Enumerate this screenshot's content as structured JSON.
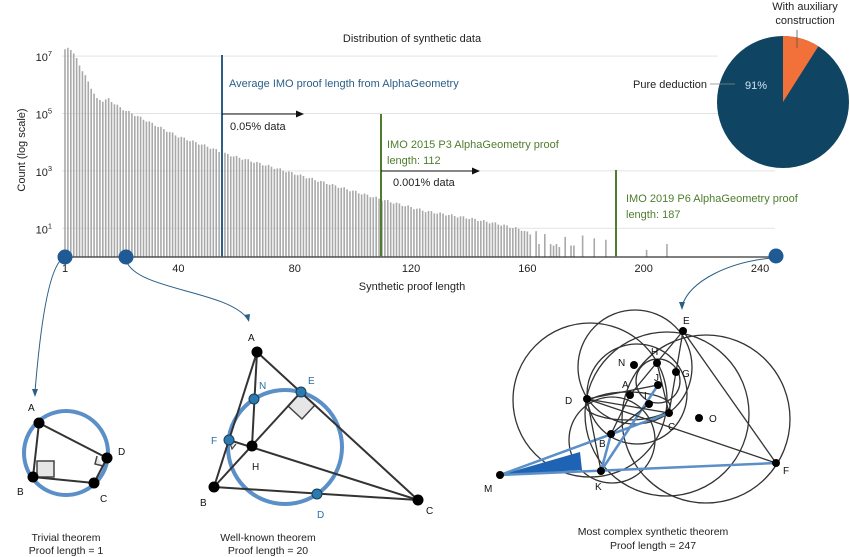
{
  "chart_data": [
    {
      "type": "bar",
      "title": "Distribution of synthetic data",
      "xlabel": "Synthetic proof length",
      "ylabel": "Count (log scale)",
      "y_scale": "log",
      "xlim": [
        1,
        247
      ],
      "ylim_log10": [
        0,
        7.4
      ],
      "x_ticks": [
        "1",
        "40",
        "80",
        "120",
        "160",
        "200",
        "240"
      ],
      "x_tick_values": [
        1,
        40,
        80,
        120,
        160,
        200,
        240
      ],
      "y_ticks": [
        {
          "base": "10",
          "exp": "7",
          "log10": 7
        },
        {
          "base": "10",
          "exp": "5",
          "log10": 5
        },
        {
          "base": "10",
          "exp": "3",
          "log10": 3
        },
        {
          "base": "10",
          "exp": "1",
          "log10": 1
        }
      ],
      "grid": true,
      "bar_color": "#a9a9a9",
      "log10_count_profile": [
        [
          1,
          7.2
        ],
        [
          2,
          7.3
        ],
        [
          3,
          7.25
        ],
        [
          5,
          6.9
        ],
        [
          8,
          6.3
        ],
        [
          10,
          5.9
        ],
        [
          12,
          5.5
        ],
        [
          14,
          5.45
        ],
        [
          16,
          5.5
        ],
        [
          20,
          5.2
        ],
        [
          30,
          4.7
        ],
        [
          40,
          4.2
        ],
        [
          50,
          3.85
        ],
        [
          56,
          3.6
        ],
        [
          70,
          3.2
        ],
        [
          90,
          2.6
        ],
        [
          110,
          2.0
        ],
        [
          125,
          1.6
        ],
        [
          140,
          1.35
        ],
        [
          150,
          1.15
        ],
        [
          158,
          0.95
        ],
        [
          161,
          0.8
        ]
      ],
      "tail_log10_counts": [
        [
          163,
          0.9
        ],
        [
          164,
          0.45
        ],
        [
          166,
          0.8
        ],
        [
          168,
          0.45
        ],
        [
          169,
          0.4
        ],
        [
          170,
          0.45
        ],
        [
          171,
          0.35
        ],
        [
          173,
          0.7
        ],
        [
          175,
          0.4
        ],
        [
          176,
          0.4
        ],
        [
          179,
          0.75
        ],
        [
          183,
          0.65
        ],
        [
          187,
          0.6
        ],
        [
          201,
          0.25
        ],
        [
          208,
          0.45
        ]
      ],
      "annotations": [
        {
          "x": 56,
          "color": "#2b5f86",
          "label_lines": [
            "Average IMO proof length from AlphaGeometry"
          ],
          "share_label": "0.05% data"
        },
        {
          "x": 112,
          "color": "#4f7d2e",
          "label_lines": [
            "IMO 2015 P3 AlphaGeometry proof",
            "length: 112"
          ],
          "share_label": "0.001% data"
        },
        {
          "x": 187,
          "color": "#4f7d2e",
          "label_lines": [
            "IMO 2019 P6 AlphaGeometry proof",
            "length: 187"
          ],
          "share_label": ""
        }
      ],
      "highlight_points": [
        1,
        20,
        247
      ]
    },
    {
      "type": "pie",
      "slices": [
        {
          "label": "Pure deduction",
          "value": 91,
          "value_label": "91%",
          "color": "#0f4563"
        },
        {
          "label_lines": [
            "With auxiliary",
            "construction"
          ],
          "value": 9,
          "color": "#f2703a"
        }
      ]
    }
  ],
  "diagrams": {
    "trivial": {
      "caption": "Trivial theorem",
      "proof": "Proof length = 1",
      "points": [
        "A",
        "B",
        "C",
        "D"
      ]
    },
    "well_known": {
      "caption": "Well-known theorem",
      "proof": "Proof length = 20",
      "points": [
        "A",
        "B",
        "C",
        "H",
        "N",
        "E",
        "F",
        "D"
      ]
    },
    "complex": {
      "caption": "Most complex synthetic theorem",
      "proof": "Proof length = 247",
      "points": [
        "E",
        "H",
        "N",
        "G",
        "J",
        "A",
        "I",
        "D",
        "C",
        "O",
        "B",
        "K",
        "M",
        "F"
      ]
    }
  },
  "colors": {
    "accent_blue": "#1f5a94",
    "circle_blue": "#5b8fc7",
    "grid": "#e3e3e3"
  }
}
